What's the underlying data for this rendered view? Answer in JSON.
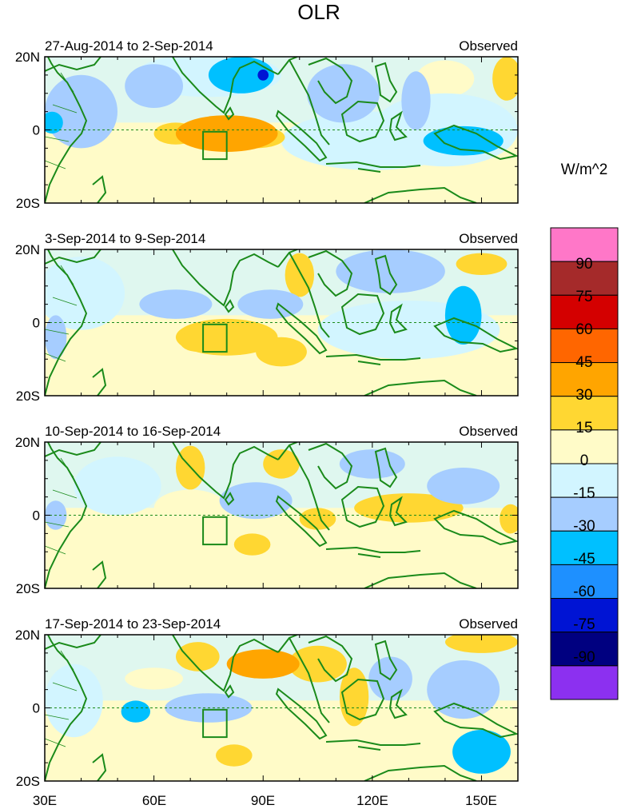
{
  "chart_data": {
    "type": "heatmap",
    "title": "OLR",
    "units_label": "W/m^2",
    "x_ticks": [
      {
        "value": 30,
        "label": "30E"
      },
      {
        "value": 60,
        "label": "60E"
      },
      {
        "value": 90,
        "label": "90E"
      },
      {
        "value": 120,
        "label": "120E"
      },
      {
        "value": 150,
        "label": "150E"
      }
    ],
    "x_range": [
      30,
      160
    ],
    "y_ticks": [
      {
        "value": 20,
        "label": "20N"
      },
      {
        "value": 0,
        "label": "0"
      },
      {
        "value": -20,
        "label": "20S"
      }
    ],
    "y_range": [
      -20,
      20
    ],
    "colorbar": {
      "labels": [
        "90",
        "75",
        "60",
        "45",
        "30",
        "15",
        "0",
        "-15",
        "-30",
        "-45",
        "-60",
        "-75",
        "-90"
      ],
      "colors_top_to_bottom": [
        "#ff77c8",
        "#a52a2a",
        "#d40000",
        "#ff6600",
        "#ffa500",
        "#ffd732",
        "#fffbc8",
        "#d2f5ff",
        "#a6cdff",
        "#00c0ff",
        "#1e90ff",
        "#0014d4",
        "#000080",
        "#8c30f0"
      ]
    },
    "panels": [
      {
        "date_range": "27-Aug-2014 to 2-Sep-2014",
        "label": "Observed",
        "anomalies": [
          {
            "lon": 80,
            "lat": -1,
            "value": 40,
            "rx": 14,
            "ry": 5
          },
          {
            "lon": 88,
            "lat": -2,
            "value": 22,
            "rx": 8,
            "ry": 3
          },
          {
            "lon": 66,
            "lat": -1,
            "value": 28,
            "rx": 6,
            "ry": 3
          },
          {
            "lon": 80,
            "lat": -8,
            "value": 12,
            "rx": 28,
            "ry": 7
          },
          {
            "lon": 55,
            "lat": -10,
            "value": 10,
            "rx": 30,
            "ry": 8
          },
          {
            "lon": 157,
            "lat": 14,
            "value": 25,
            "rx": 4,
            "ry": 6
          },
          {
            "lon": 140,
            "lat": 14,
            "value": 12,
            "rx": 8,
            "ry": 5
          },
          {
            "lon": 60,
            "lat": 12,
            "value": -30,
            "rx": 8,
            "ry": 6
          },
          {
            "lon": 84,
            "lat": 15,
            "value": -40,
            "rx": 9,
            "ry": 5
          },
          {
            "lon": 90,
            "lat": 15,
            "value": -75,
            "rx": 1.5,
            "ry": 1.5
          },
          {
            "lon": 75,
            "lat": 15,
            "value": -15,
            "rx": 20,
            "ry": 6
          },
          {
            "lon": 112,
            "lat": 10,
            "value": -22,
            "rx": 10,
            "ry": 8
          },
          {
            "lon": 132,
            "lat": 8,
            "value": -30,
            "rx": 4,
            "ry": 8
          },
          {
            "lon": 145,
            "lat": -3,
            "value": -40,
            "rx": 11,
            "ry": 4
          },
          {
            "lon": 140,
            "lat": 0,
            "value": -15,
            "rx": 20,
            "ry": 10
          },
          {
            "lon": 32,
            "lat": 2,
            "value": -40,
            "rx": 3,
            "ry": 3
          },
          {
            "lon": 40,
            "lat": 5,
            "value": -18,
            "rx": 10,
            "ry": 10
          },
          {
            "lon": 120,
            "lat": -3,
            "value": -12,
            "rx": 25,
            "ry": 8
          }
        ]
      },
      {
        "date_range": "3-Sep-2014 to 9-Sep-2014",
        "label": "Observed",
        "anomalies": [
          {
            "lon": 80,
            "lat": -4,
            "value": 18,
            "rx": 14,
            "ry": 5
          },
          {
            "lon": 95,
            "lat": -8,
            "value": 15,
            "rx": 7,
            "ry": 4
          },
          {
            "lon": 72,
            "lat": -5,
            "value": 20,
            "rx": 5,
            "ry": 3
          },
          {
            "lon": 100,
            "lat": 13,
            "value": 15,
            "rx": 4,
            "ry": 6
          },
          {
            "lon": 150,
            "lat": 16,
            "value": 15,
            "rx": 7,
            "ry": 3
          },
          {
            "lon": 80,
            "lat": -15,
            "value": 8,
            "rx": 45,
            "ry": 6
          },
          {
            "lon": 125,
            "lat": 14,
            "value": -22,
            "rx": 15,
            "ry": 6
          },
          {
            "lon": 145,
            "lat": 2,
            "value": -40,
            "rx": 5,
            "ry": 8
          },
          {
            "lon": 66,
            "lat": 5,
            "value": -30,
            "rx": 10,
            "ry": 4
          },
          {
            "lon": 92,
            "lat": 5,
            "value": -25,
            "rx": 9,
            "ry": 4
          },
          {
            "lon": 40,
            "lat": 8,
            "value": -15,
            "rx": 12,
            "ry": 10
          },
          {
            "lon": 33,
            "lat": -4,
            "value": -30,
            "rx": 3,
            "ry": 6
          },
          {
            "lon": 130,
            "lat": -2,
            "value": -15,
            "rx": 25,
            "ry": 8
          }
        ]
      },
      {
        "date_range": "10-Sep-2014 to 16-Sep-2014",
        "label": "Observed",
        "anomalies": [
          {
            "lon": 70,
            "lat": 13,
            "value": 22,
            "rx": 4,
            "ry": 6
          },
          {
            "lon": 105,
            "lat": -1,
            "value": 28,
            "rx": 5,
            "ry": 3
          },
          {
            "lon": 87,
            "lat": -8,
            "value": 20,
            "rx": 5,
            "ry": 3
          },
          {
            "lon": 130,
            "lat": 2,
            "value": 15,
            "rx": 15,
            "ry": 4
          },
          {
            "lon": 158,
            "lat": -1,
            "value": 25,
            "rx": 3,
            "ry": 4
          },
          {
            "lon": 95,
            "lat": 14,
            "value": 15,
            "rx": 5,
            "ry": 4
          },
          {
            "lon": 70,
            "lat": 2,
            "value": 12,
            "rx": 10,
            "ry": 5
          },
          {
            "lon": 80,
            "lat": -14,
            "value": 6,
            "rx": 45,
            "ry": 6
          },
          {
            "lon": 120,
            "lat": 14,
            "value": -30,
            "rx": 9,
            "ry": 4
          },
          {
            "lon": 145,
            "lat": 8,
            "value": -25,
            "rx": 10,
            "ry": 5
          },
          {
            "lon": 88,
            "lat": 4,
            "value": -18,
            "rx": 10,
            "ry": 5
          },
          {
            "lon": 50,
            "lat": 8,
            "value": -15,
            "rx": 12,
            "ry": 8
          },
          {
            "lon": 33,
            "lat": 0,
            "value": -25,
            "rx": 3,
            "ry": 4
          }
        ]
      },
      {
        "date_range": "17-Sep-2014 to 23-Sep-2014",
        "label": "Observed",
        "anomalies": [
          {
            "lon": 90,
            "lat": 12,
            "value": 38,
            "rx": 10,
            "ry": 4
          },
          {
            "lon": 105,
            "lat": 12,
            "value": 25,
            "rx": 8,
            "ry": 5
          },
          {
            "lon": 115,
            "lat": 3,
            "value": 20,
            "rx": 4,
            "ry": 8
          },
          {
            "lon": 72,
            "lat": 14,
            "value": 15,
            "rx": 6,
            "ry": 4
          },
          {
            "lon": 60,
            "lat": 8,
            "value": 12,
            "rx": 8,
            "ry": 3
          },
          {
            "lon": 82,
            "lat": -13,
            "value": 15,
            "rx": 5,
            "ry": 3
          },
          {
            "lon": 150,
            "lat": 18,
            "value": 15,
            "rx": 10,
            "ry": 3
          },
          {
            "lon": 55,
            "lat": -1,
            "value": -40,
            "rx": 4,
            "ry": 3
          },
          {
            "lon": 75,
            "lat": 0,
            "value": -25,
            "rx": 12,
            "ry": 4
          },
          {
            "lon": 150,
            "lat": -12,
            "value": -45,
            "rx": 8,
            "ry": 6
          },
          {
            "lon": 145,
            "lat": 5,
            "value": -22,
            "rx": 10,
            "ry": 8
          },
          {
            "lon": 125,
            "lat": 8,
            "value": -18,
            "rx": 6,
            "ry": 6
          },
          {
            "lon": 38,
            "lat": 2,
            "value": -15,
            "rx": 8,
            "ry": 10
          }
        ]
      }
    ]
  }
}
